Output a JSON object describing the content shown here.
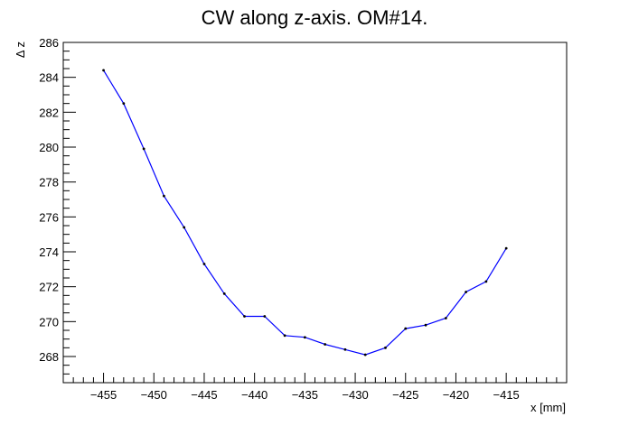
{
  "chart_data": {
    "type": "line",
    "title": "CW along z-axis. OM#14.",
    "xlabel": "x [mm]",
    "ylabel": "Δ z",
    "xlim": [
      -459,
      -409
    ],
    "ylim": [
      266.5,
      286
    ],
    "x_ticks": [
      -455,
      -450,
      -445,
      -440,
      -435,
      -430,
      -425,
      -420,
      -415
    ],
    "x_tick_labels": [
      "−455",
      "−450",
      "−445",
      "−440",
      "−435",
      "−430",
      "−425",
      "−420",
      "−415"
    ],
    "x_minor_step": 1,
    "y_ticks": [
      268,
      270,
      272,
      274,
      276,
      278,
      280,
      282,
      284,
      286
    ],
    "y_tick_labels": [
      "268",
      "270",
      "272",
      "274",
      "276",
      "278",
      "280",
      "282",
      "284",
      "286"
    ],
    "y_minor_step": 0.5,
    "grid": false,
    "legend": "none",
    "series": [
      {
        "color": "#0000ff",
        "marker_color": "#000000",
        "x": [
          -455,
          -453,
          -451,
          -449,
          -447,
          -445,
          -443,
          -441,
          -439,
          -437,
          -435,
          -433,
          -431,
          -429,
          -427,
          -425,
          -423,
          -421,
          -419,
          -417,
          -415
        ],
        "y": [
          284.4,
          282.5,
          279.9,
          277.2,
          275.4,
          273.3,
          271.6,
          270.3,
          270.3,
          269.2,
          269.1,
          268.7,
          268.4,
          268.1,
          268.5,
          269.6,
          269.8,
          270.2,
          271.7,
          272.3,
          274.2
        ]
      }
    ]
  }
}
